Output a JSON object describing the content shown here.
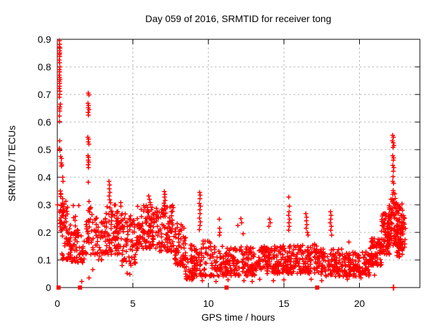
{
  "colors": {
    "background": "#ffffff",
    "axis": "#000000",
    "grid": "#b0b0b0",
    "marker": "#ff0000",
    "text": "#000000"
  },
  "chart_data": {
    "type": "scatter",
    "title": "Day 059 of 2016, SRMTID for receiver tong",
    "xlabel": "GPS time / hours",
    "ylabel": "SRMTID / TECUs",
    "xlim": [
      0,
      24
    ],
    "ylim": [
      0,
      0.9
    ],
    "xticks": [
      {
        "v": 0,
        "label": "0"
      },
      {
        "v": 5,
        "label": "5"
      },
      {
        "v": 10,
        "label": "10"
      },
      {
        "v": 15,
        "label": "15"
      },
      {
        "v": 20,
        "label": "20"
      }
    ],
    "yticks": [
      {
        "v": 0,
        "label": "0"
      },
      {
        "v": 0.1,
        "label": "0.1"
      },
      {
        "v": 0.2,
        "label": "0.2"
      },
      {
        "v": 0.3,
        "label": "0.3"
      },
      {
        "v": 0.4,
        "label": "0.4"
      },
      {
        "v": 0.5,
        "label": "0.5"
      },
      {
        "v": 0.6,
        "label": "0.6"
      },
      {
        "v": 0.7,
        "label": "0.7"
      },
      {
        "v": 0.8,
        "label": "0.8"
      },
      {
        "v": 0.9,
        "label": "0.9"
      }
    ],
    "grid": {
      "style": "dashed",
      "color": "#b0b0b0",
      "x_at": [
        5,
        10,
        15,
        20
      ],
      "y_at": [
        0.1,
        0.2,
        0.3,
        0.4,
        0.5,
        0.6,
        0.7,
        0.8
      ]
    },
    "legend": "none",
    "series": [
      {
        "name": "SRMTID",
        "marker": "plus",
        "color": "#ff0000",
        "seed": 59,
        "points": [
          [
            0.14,
            0.895
          ],
          [
            0.16,
            0.882
          ],
          [
            0.13,
            0.872
          ],
          [
            0.18,
            0.868
          ],
          [
            0.15,
            0.858
          ],
          [
            0.17,
            0.85
          ],
          [
            0.14,
            0.845
          ],
          [
            0.16,
            0.838
          ],
          [
            0.13,
            0.825
          ],
          [
            0.15,
            0.815
          ],
          [
            0.17,
            0.8
          ],
          [
            0.14,
            0.79
          ],
          [
            0.16,
            0.782
          ],
          [
            0.13,
            0.77
          ],
          [
            0.15,
            0.762
          ],
          [
            0.18,
            0.755
          ],
          [
            0.14,
            0.748
          ],
          [
            0.16,
            0.74
          ],
          [
            0.15,
            0.73
          ],
          [
            0.13,
            0.722
          ],
          [
            0.17,
            0.712
          ],
          [
            0.15,
            0.7
          ],
          [
            0.14,
            0.69
          ],
          [
            0.2,
            0.665
          ],
          [
            0.17,
            0.655
          ],
          [
            0.15,
            0.648
          ],
          [
            0.16,
            0.64
          ],
          [
            0.14,
            0.622
          ],
          [
            0.15,
            0.602
          ],
          [
            0.16,
            0.532
          ],
          [
            0.14,
            0.505
          ],
          [
            0.17,
            0.497
          ],
          [
            0.22,
            0.475
          ],
          [
            0.28,
            0.468
          ],
          [
            0.25,
            0.452
          ],
          [
            0.3,
            0.445
          ],
          [
            0.27,
            0.44
          ],
          [
            0.35,
            0.4
          ],
          [
            0.38,
            0.385
          ],
          [
            0.2,
            0.35
          ],
          [
            0.24,
            0.338
          ],
          [
            0.22,
            0.33
          ],
          [
            0.02,
            0.3
          ],
          [
            2.05,
            0.705
          ],
          [
            2.09,
            0.698
          ],
          [
            2.03,
            0.668
          ],
          [
            2.07,
            0.66
          ],
          [
            2.05,
            0.652
          ],
          [
            2.1,
            0.645
          ],
          [
            2.04,
            0.635
          ],
          [
            2.06,
            0.625
          ],
          [
            2.02,
            0.545
          ],
          [
            2.07,
            0.538
          ],
          [
            2.05,
            0.528
          ],
          [
            2.09,
            0.52
          ],
          [
            2.03,
            0.478
          ],
          [
            2.07,
            0.472
          ],
          [
            2.05,
            0.462
          ],
          [
            2.08,
            0.455
          ],
          [
            2.04,
            0.445
          ],
          [
            2.06,
            0.435
          ],
          [
            2.05,
            0.382
          ],
          [
            2.1,
            0.312
          ],
          [
            3.42,
            0.385
          ],
          [
            3.46,
            0.372
          ],
          [
            3.44,
            0.358
          ],
          [
            3.48,
            0.345
          ],
          [
            3.43,
            0.332
          ],
          [
            3.47,
            0.318
          ],
          [
            6.05,
            0.332
          ],
          [
            6.1,
            0.32
          ],
          [
            7.08,
            0.348
          ],
          [
            7.12,
            0.338
          ],
          [
            7.1,
            0.328
          ],
          [
            7.14,
            0.316
          ],
          [
            7.06,
            0.306
          ],
          [
            9.42,
            0.345
          ],
          [
            9.46,
            0.335
          ],
          [
            9.44,
            0.322
          ],
          [
            9.4,
            0.305
          ],
          [
            9.48,
            0.295
          ],
          [
            9.43,
            0.282
          ],
          [
            9.45,
            0.268
          ],
          [
            9.41,
            0.252
          ],
          [
            9.47,
            0.238
          ],
          [
            9.44,
            0.225
          ],
          [
            9.4,
            0.21
          ],
          [
            10.72,
            0.248
          ],
          [
            10.74,
            0.215
          ],
          [
            10.76,
            0.2
          ],
          [
            10.73,
            0.19
          ],
          [
            11.95,
            0.225
          ],
          [
            12.15,
            0.25
          ],
          [
            12.2,
            0.235
          ],
          [
            12.3,
            0.195
          ],
          [
            14.05,
            0.248
          ],
          [
            14.1,
            0.235
          ],
          [
            14.0,
            0.222
          ],
          [
            15.32,
            0.328
          ],
          [
            15.36,
            0.295
          ],
          [
            15.34,
            0.275
          ],
          [
            15.3,
            0.262
          ],
          [
            15.38,
            0.248
          ],
          [
            15.33,
            0.235
          ],
          [
            15.35,
            0.222
          ],
          [
            15.31,
            0.208
          ],
          [
            16.45,
            0.268
          ],
          [
            16.5,
            0.255
          ],
          [
            16.48,
            0.242
          ],
          [
            16.52,
            0.228
          ],
          [
            16.47,
            0.215
          ],
          [
            16.55,
            0.2
          ],
          [
            16.6,
            0.19
          ],
          [
            18.08,
            0.275
          ],
          [
            18.12,
            0.262
          ],
          [
            18.1,
            0.248
          ],
          [
            18.06,
            0.235
          ],
          [
            18.14,
            0.222
          ],
          [
            18.1,
            0.208
          ],
          [
            18.16,
            0.19
          ],
          [
            19.3,
            0.165
          ],
          [
            22.2,
            0.552
          ],
          [
            22.25,
            0.545
          ],
          [
            22.18,
            0.532
          ],
          [
            22.23,
            0.525
          ],
          [
            22.28,
            0.515
          ],
          [
            22.22,
            0.508
          ],
          [
            22.2,
            0.478
          ],
          [
            22.26,
            0.47
          ],
          [
            22.24,
            0.462
          ],
          [
            22.21,
            0.443
          ],
          [
            22.27,
            0.435
          ],
          [
            22.24,
            0.422
          ],
          [
            22.22,
            0.402
          ],
          [
            22.2,
            0.385
          ],
          [
            22.26,
            0.378
          ],
          [
            22.23,
            0.352
          ],
          [
            22.25,
            0.345
          ],
          [
            22.21,
            0.338
          ],
          [
            1.62,
            0.022
          ],
          [
            2.1,
            0.035
          ],
          [
            2.35,
            0.065
          ],
          [
            4.62,
            0.052
          ],
          [
            4.8,
            0.048
          ],
          [
            8.9,
            0.028
          ],
          [
            9.6,
            0.025
          ],
          [
            10.5,
            0.022
          ],
          [
            11.3,
            0.028
          ],
          [
            12.35,
            0.025
          ],
          [
            12.9,
            0.022
          ],
          [
            13.4,
            0.03
          ],
          [
            14.3,
            0.025
          ],
          [
            15.0,
            0.028
          ],
          [
            16.8,
            0.03
          ],
          [
            17.5,
            0.025
          ],
          [
            19.2,
            0.03
          ],
          [
            20.1,
            0.035
          ],
          [
            21.0,
            0.045
          ]
        ],
        "clusters": [
          {
            "x": [
              0.15,
              0.7
            ],
            "y": [
              0.2,
              0.345
            ],
            "n": 45
          },
          {
            "x": [
              0.3,
              0.95
            ],
            "y": [
              0.1,
              0.23
            ],
            "n": 40
          },
          {
            "x": [
              0.85,
              1.8
            ],
            "y": [
              0.09,
              0.21
            ],
            "n": 55
          },
          {
            "x": [
              1.05,
              1.45
            ],
            "y": [
              0.18,
              0.3
            ],
            "n": 14
          },
          {
            "x": [
              1.85,
              2.3
            ],
            "y": [
              0.12,
              0.3
            ],
            "n": 32
          },
          {
            "x": [
              2.3,
              3.2
            ],
            "y": [
              0.1,
              0.26
            ],
            "n": 55
          },
          {
            "x": [
              3.2,
              4.25
            ],
            "y": [
              0.12,
              0.31
            ],
            "n": 95
          },
          {
            "x": [
              4.25,
              5.3
            ],
            "y": [
              0.08,
              0.27
            ],
            "n": 75
          },
          {
            "x": [
              5.3,
              6.3
            ],
            "y": [
              0.14,
              0.31
            ],
            "n": 90
          },
          {
            "x": [
              6.3,
              7.7
            ],
            "y": [
              0.13,
              0.3
            ],
            "n": 120
          },
          {
            "x": [
              7.7,
              8.5
            ],
            "y": [
              0.08,
              0.24
            ],
            "n": 65
          },
          {
            "x": [
              8.4,
              9.0
            ],
            "y": [
              0.03,
              0.13
            ],
            "n": 35
          },
          {
            "x": [
              8.8,
              10.2
            ],
            "y": [
              0.04,
              0.17
            ],
            "n": 90
          },
          {
            "x": [
              10.2,
              11.6
            ],
            "y": [
              0.04,
              0.15
            ],
            "n": 85
          },
          {
            "x": [
              11.6,
              13.2
            ],
            "y": [
              0.04,
              0.15
            ],
            "n": 115
          },
          {
            "x": [
              13.2,
              14.7
            ],
            "y": [
              0.05,
              0.15
            ],
            "n": 105
          },
          {
            "x": [
              14.7,
              16.2
            ],
            "y": [
              0.05,
              0.16
            ],
            "n": 110
          },
          {
            "x": [
              16.2,
              17.4
            ],
            "y": [
              0.05,
              0.16
            ],
            "n": 90
          },
          {
            "x": [
              17.4,
              19.1
            ],
            "y": [
              0.04,
              0.14
            ],
            "n": 115
          },
          {
            "x": [
              19.1,
              20.7
            ],
            "y": [
              0.04,
              0.13
            ],
            "n": 115
          },
          {
            "x": [
              20.7,
              21.45
            ],
            "y": [
              0.08,
              0.18
            ],
            "n": 75
          },
          {
            "x": [
              21.45,
              22.0
            ],
            "y": [
              0.12,
              0.27
            ],
            "n": 80
          },
          {
            "x": [
              21.95,
              22.45
            ],
            "y": [
              0.15,
              0.34
            ],
            "n": 65
          },
          {
            "x": [
              22.45,
              22.85
            ],
            "y": [
              0.11,
              0.31
            ],
            "n": 75
          },
          {
            "x": [
              22.8,
              23.05
            ],
            "y": [
              0.14,
              0.27
            ],
            "n": 18
          }
        ]
      }
    ],
    "baseline_markers": {
      "color": "#ff0000",
      "square_x": [
        0.08,
        1.5,
        11.2,
        17.2
      ],
      "plus_x": [
        22.25
      ]
    }
  }
}
